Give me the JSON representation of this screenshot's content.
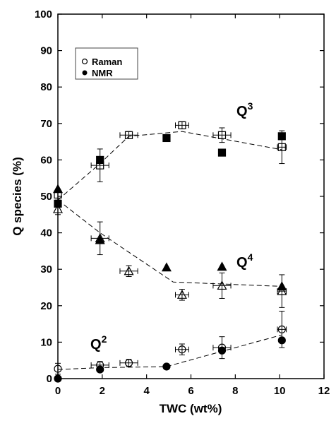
{
  "chart_data": {
    "type": "scatter",
    "xlabel": "TWC (wt%)",
    "ylabel": "Q species (%)",
    "xlim": [
      0,
      12
    ],
    "xticks": [
      0,
      2,
      4,
      6,
      8,
      10,
      12
    ],
    "ylim": [
      0,
      100
    ],
    "yticks": [
      0,
      10,
      20,
      30,
      40,
      50,
      60,
      70,
      80,
      90,
      100
    ],
    "legend": [
      "Raman",
      "NMR"
    ],
    "annotations": [
      {
        "base": "Q",
        "sup": "3"
      },
      {
        "base": "Q",
        "sup": "4"
      },
      {
        "base": "Q",
        "sup": "2"
      }
    ],
    "series": [
      {
        "marker": "square",
        "fill": "open",
        "x": [
          0,
          1.9,
          3.2,
          5.6,
          7.4,
          10.1
        ],
        "values": [
          50.5,
          58.5,
          66.8,
          69.5,
          66.8,
          63.5
        ],
        "xerr": [
          0,
          0.4,
          0.4,
          0.3,
          0.4,
          0.2
        ],
        "yerr": [
          1.5,
          4.5,
          1,
          1,
          2,
          4.5
        ]
      },
      {
        "marker": "square",
        "fill": "filled",
        "x": [
          0,
          1.9,
          4.9,
          7.4,
          10.1
        ],
        "values": [
          48,
          60,
          66,
          62,
          66.5
        ]
      },
      {
        "marker": "triangle",
        "fill": "open",
        "x": [
          0,
          1.9,
          3.2,
          5.6,
          7.4,
          10.1
        ],
        "values": [
          46.5,
          38.5,
          29.5,
          23,
          25.5,
          24
        ],
        "xerr": [
          0,
          0.4,
          0.4,
          0.3,
          0.4,
          0.2
        ],
        "yerr": [
          1.5,
          4.5,
          1.5,
          1.5,
          3.5,
          4.5
        ]
      },
      {
        "marker": "triangle",
        "fill": "filled",
        "x": [
          0,
          1.9,
          4.9,
          7.4,
          10.1
        ],
        "values": [
          52,
          38,
          30.5,
          30.7,
          25.3
        ]
      },
      {
        "marker": "circle",
        "fill": "open",
        "x": [
          0,
          1.9,
          3.2,
          5.6,
          7.4,
          10.1
        ],
        "values": [
          2.7,
          3.7,
          4.3,
          8,
          8.5,
          13.5
        ],
        "xerr": [
          0,
          0.4,
          0.4,
          0.3,
          0.4,
          0.2
        ],
        "yerr": [
          1.5,
          1,
          1,
          1.5,
          3,
          5
        ]
      },
      {
        "marker": "circle",
        "fill": "filled",
        "x": [
          0,
          1.9,
          4.9,
          7.4,
          10.1
        ],
        "values": [
          0,
          2.5,
          3.3,
          7.7,
          10.5
        ]
      }
    ],
    "fit_lines": [
      {
        "x": [
          0,
          1.9,
          3.2,
          5.6,
          10.1
        ],
        "y": [
          49,
          59,
          66.5,
          67.8,
          62.8
        ]
      },
      {
        "x": [
          0,
          1.9,
          5.2,
          10.1
        ],
        "y": [
          49,
          40,
          26.5,
          25.3
        ]
      },
      {
        "x": [
          0,
          1.9,
          4.9,
          10.1
        ],
        "y": [
          2.5,
          3,
          3.3,
          12
        ]
      }
    ]
  }
}
